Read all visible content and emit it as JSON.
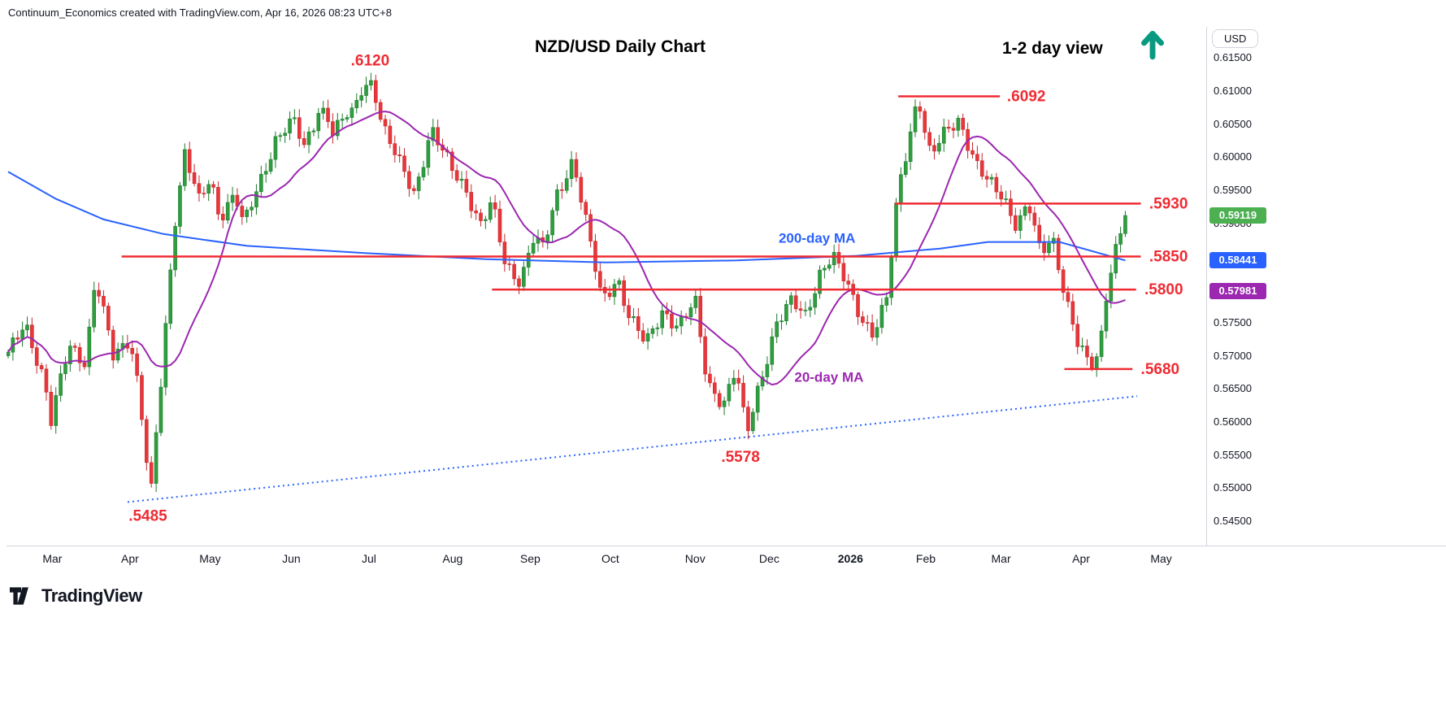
{
  "header": {
    "attribution": "Continuum_Economics created with TradingView.com, Apr 16, 2026 08:23 UTC+8"
  },
  "axis_panel": {
    "currency_button": "USD"
  },
  "footer": {
    "brand": "TradingView"
  },
  "chart_data": {
    "type": "candlestick",
    "title": "NZD/USD Daily Chart",
    "view_note": "1-2 day view",
    "last_price": 0.59119,
    "y_axis": {
      "price_top": 0.6197,
      "price_bottom": 0.5412,
      "ticks": [
        "0.61500",
        "0.61000",
        "0.60500",
        "0.60000",
        "0.59500",
        "0.59000",
        "0.57500",
        "0.57000",
        "0.56500",
        "0.56000",
        "0.55500",
        "0.55000",
        "0.54500"
      ]
    },
    "x_axis": {
      "labels": [
        {
          "label": "Mar",
          "t": 0.037
        },
        {
          "label": "Apr",
          "t": 0.102
        },
        {
          "label": "May",
          "t": 0.169
        },
        {
          "label": "Jun",
          "t": 0.237
        },
        {
          "label": "Jul",
          "t": 0.302
        },
        {
          "label": "Aug",
          "t": 0.372
        },
        {
          "label": "Sep",
          "t": 0.437
        },
        {
          "label": "Oct",
          "t": 0.504
        },
        {
          "label": "Nov",
          "t": 0.575
        },
        {
          "label": "Dec",
          "t": 0.637
        },
        {
          "label": "2026",
          "t": 0.705,
          "bold": true
        },
        {
          "label": "Feb",
          "t": 0.768
        },
        {
          "label": "Mar",
          "t": 0.831
        },
        {
          "label": "Apr",
          "t": 0.898
        },
        {
          "label": "May",
          "t": 0.965
        }
      ]
    },
    "price_path": [
      [
        0.0,
        0.57
      ],
      [
        0.014,
        0.5755
      ],
      [
        0.031,
        0.5655
      ],
      [
        0.035,
        0.559
      ],
      [
        0.051,
        0.572
      ],
      [
        0.065,
        0.569
      ],
      [
        0.073,
        0.5815
      ],
      [
        0.088,
        0.57
      ],
      [
        0.102,
        0.573
      ],
      [
        0.11,
        0.564
      ],
      [
        0.119,
        0.5485
      ],
      [
        0.129,
        0.568
      ],
      [
        0.139,
        0.59
      ],
      [
        0.148,
        0.601
      ],
      [
        0.16,
        0.593
      ],
      [
        0.169,
        0.5965
      ],
      [
        0.177,
        0.591
      ],
      [
        0.19,
        0.595
      ],
      [
        0.197,
        0.5895
      ],
      [
        0.211,
        0.596
      ],
      [
        0.224,
        0.603
      ],
      [
        0.238,
        0.606
      ],
      [
        0.248,
        0.601
      ],
      [
        0.262,
        0.608
      ],
      [
        0.272,
        0.604
      ],
      [
        0.286,
        0.6065
      ],
      [
        0.303,
        0.612
      ],
      [
        0.313,
        0.605
      ],
      [
        0.327,
        0.599
      ],
      [
        0.34,
        0.5945
      ],
      [
        0.354,
        0.6045
      ],
      [
        0.371,
        0.598
      ],
      [
        0.384,
        0.595
      ],
      [
        0.395,
        0.59
      ],
      [
        0.405,
        0.593
      ],
      [
        0.416,
        0.5835
      ],
      [
        0.429,
        0.5815
      ],
      [
        0.439,
        0.588
      ],
      [
        0.448,
        0.586
      ],
      [
        0.459,
        0.594
      ],
      [
        0.473,
        0.6
      ],
      [
        0.486,
        0.588
      ],
      [
        0.497,
        0.578
      ],
      [
        0.51,
        0.582
      ],
      [
        0.52,
        0.576
      ],
      [
        0.534,
        0.5715
      ],
      [
        0.548,
        0.577
      ],
      [
        0.561,
        0.5745
      ],
      [
        0.575,
        0.578
      ],
      [
        0.585,
        0.566
      ],
      [
        0.599,
        0.563
      ],
      [
        0.609,
        0.568
      ],
      [
        0.618,
        0.5578
      ],
      [
        0.629,
        0.566
      ],
      [
        0.643,
        0.575
      ],
      [
        0.656,
        0.578
      ],
      [
        0.667,
        0.576
      ],
      [
        0.68,
        0.583
      ],
      [
        0.69,
        0.585
      ],
      [
        0.701,
        0.581
      ],
      [
        0.714,
        0.576
      ],
      [
        0.724,
        0.5735
      ],
      [
        0.735,
        0.578
      ],
      [
        0.745,
        0.595
      ],
      [
        0.761,
        0.6092
      ],
      [
        0.772,
        0.6
      ],
      [
        0.786,
        0.604
      ],
      [
        0.796,
        0.606
      ],
      [
        0.81,
        0.599
      ],
      [
        0.82,
        0.596
      ],
      [
        0.833,
        0.594
      ],
      [
        0.844,
        0.59
      ],
      [
        0.854,
        0.593
      ],
      [
        0.864,
        0.585
      ],
      [
        0.874,
        0.588
      ],
      [
        0.884,
        0.58
      ],
      [
        0.895,
        0.572
      ],
      [
        0.905,
        0.568
      ],
      [
        0.913,
        0.57
      ],
      [
        0.92,
        0.581
      ],
      [
        0.929,
        0.588
      ],
      [
        0.935,
        0.5912
      ]
    ],
    "ma200": {
      "label": "200-day MA",
      "color": "#2962ff",
      "last_value": 0.58441,
      "points": [
        [
          0.0,
          0.5978
        ],
        [
          0.04,
          0.5937
        ],
        [
          0.08,
          0.5906
        ],
        [
          0.13,
          0.5884
        ],
        [
          0.2,
          0.5866
        ],
        [
          0.3,
          0.5855
        ],
        [
          0.4,
          0.5846
        ],
        [
          0.5,
          0.5841
        ],
        [
          0.61,
          0.5844
        ],
        [
          0.71,
          0.5851
        ],
        [
          0.78,
          0.5862
        ],
        [
          0.82,
          0.5872
        ],
        [
          0.88,
          0.5872
        ],
        [
          0.935,
          0.58441
        ]
      ]
    },
    "ma20": {
      "label": "20-day MA",
      "color": "#9c27b0",
      "last_value": 0.57981,
      "window_days": 20
    },
    "trendline": {
      "style": "dotted",
      "color": "#2962ff",
      "from": [
        0.1,
        0.5479
      ],
      "to": [
        0.945,
        0.5639
      ]
    },
    "levels": [
      {
        "name": "resistance-6092",
        "label": ".6092",
        "price": 0.6092,
        "t1": 0.745,
        "t2": 0.83,
        "label_t": 0.836,
        "font": 19
      },
      {
        "name": "resistance-5930",
        "label": ".5930",
        "price": 0.593,
        "t1": 0.742,
        "t2": 0.948,
        "label_t": 0.955,
        "font": 19
      },
      {
        "name": "support-5850",
        "label": ".5850",
        "price": 0.585,
        "t1": 0.095,
        "t2": 0.948,
        "label_t": 0.955,
        "font": 19
      },
      {
        "name": "support-5800",
        "label": ".5800",
        "price": 0.58,
        "t1": 0.405,
        "t2": 0.944,
        "label_t": 0.951,
        "font": 19
      },
      {
        "name": "support-5680",
        "label": ".5680",
        "price": 0.568,
        "t1": 0.884,
        "t2": 0.941,
        "label_t": 0.948,
        "font": 19
      }
    ],
    "annotations": [
      {
        "name": "high-label-6120",
        "text": ".6120",
        "t": 0.303,
        "price": 0.6146,
        "color": "#ef2b32",
        "size": 19
      },
      {
        "name": "low-label-5485",
        "text": ".5485",
        "t": 0.117,
        "price": 0.5458,
        "color": "#ef2b32",
        "size": 19
      },
      {
        "name": "low-label-5578",
        "text": ".5578",
        "t": 0.613,
        "price": 0.5547,
        "color": "#ef2b32",
        "size": 19
      },
      {
        "name": "ma200-label",
        "text": "200-day MA",
        "t": 0.677,
        "price": 0.5878,
        "color": "#2962ff",
        "size": 17
      },
      {
        "name": "ma20-label",
        "text": "20-day MA",
        "t": 0.687,
        "price": 0.5668,
        "color": "#9c27b0",
        "size": 17
      }
    ],
    "badges": [
      {
        "name": "last-price-badge",
        "value": "0.59119",
        "price": 0.59119,
        "color": "#4caf50"
      },
      {
        "name": "ma200-value-badge",
        "value": "0.58441",
        "price": 0.58441,
        "color": "#2962ff"
      },
      {
        "name": "ma20-value-badge",
        "value": "0.57981",
        "price": 0.57981,
        "color": "#9c27b0"
      }
    ],
    "colors": {
      "up": "#2f9e3f",
      "up_border": "#1d7a2c",
      "down": "#e8373b",
      "down_border": "#c52a2e",
      "level": "#ef2b32",
      "arrow": "#089981",
      "text": "#131722"
    }
  }
}
